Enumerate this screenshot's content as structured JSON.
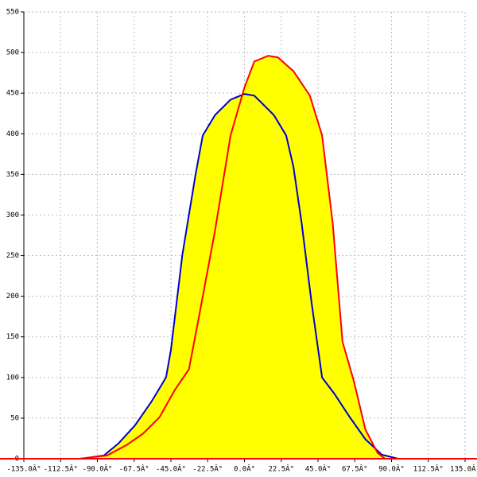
{
  "chart_data": {
    "type": "area-line",
    "xlim": [
      -135,
      135
    ],
    "xticks": [
      {
        "value": -135,
        "label": "-135.0Â°"
      },
      {
        "value": -112.5,
        "label": "-112.5Â°"
      },
      {
        "value": -90,
        "label": "-90.0Â°"
      },
      {
        "value": -67.5,
        "label": "-67.5Â°"
      },
      {
        "value": -45,
        "label": "-45.0Â°"
      },
      {
        "value": -22.5,
        "label": "-22.5Â°"
      },
      {
        "value": 0,
        "label": "0.0Â°"
      },
      {
        "value": 22.5,
        "label": "22.5Â°"
      },
      {
        "value": 45,
        "label": "45.0Â°"
      },
      {
        "value": 67.5,
        "label": "67.5Â°"
      },
      {
        "value": 90,
        "label": "90.0Â°"
      },
      {
        "value": 112.5,
        "label": "112.5Â°"
      },
      {
        "value": 135,
        "label": "135.0Â°"
      }
    ],
    "ylim": [
      0,
      550
    ],
    "yticks": [
      0,
      50,
      100,
      150,
      200,
      250,
      300,
      350,
      400,
      450,
      500,
      550
    ],
    "grid": true,
    "fill_color": "#ffff00",
    "series": [
      {
        "color": "#0000cc",
        "x": [
          -100,
          -86,
          -77,
          -67,
          -57,
          -48,
          -45,
          -38,
          -30,
          -25.5,
          -18,
          -8.5,
          0,
          6,
          18,
          25.5,
          30,
          35,
          41,
          47.5,
          55,
          64.5,
          74,
          84,
          94
        ],
        "values": [
          0,
          4,
          19,
          41,
          70,
          100,
          134,
          251,
          349,
          398,
          423,
          442,
          449,
          447,
          423,
          398,
          359,
          290,
          193,
          100,
          80,
          51,
          24,
          5,
          0
        ]
      },
      {
        "color": "#ff0000",
        "x": [
          -101,
          -84,
          -72,
          -62,
          -52,
          -42.5,
          -34,
          -28,
          -18,
          -8.5,
          0,
          6,
          14.5,
          20.5,
          30,
          40,
          47.5,
          54,
          60,
          67,
          74,
          81.5,
          86,
          101
        ],
        "values": [
          0,
          4,
          17,
          31,
          51,
          85,
          110,
          173,
          281,
          398,
          457,
          489,
          496,
          494,
          477,
          447,
          398,
          290,
          144,
          95,
          36,
          7,
          0,
          0
        ]
      }
    ]
  }
}
